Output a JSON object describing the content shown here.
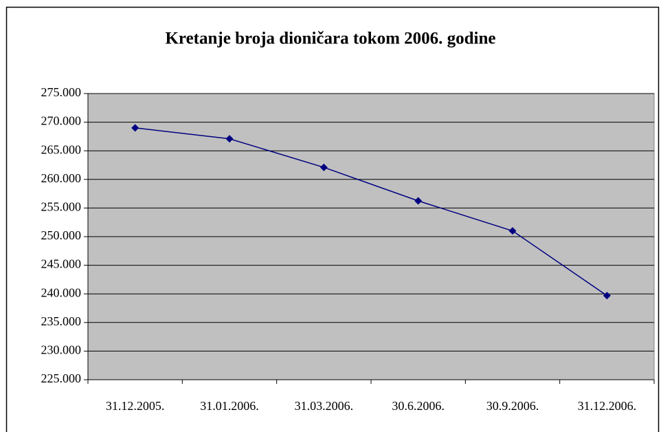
{
  "chart_data": {
    "type": "line",
    "title": "Kretanje broja dioničara tokom 2006. godine",
    "categories": [
      "31.12.2005.",
      "31.01.2006.",
      "31.03.2006.",
      "30.6.2006.",
      "30.9.2006.",
      "31.12.2006."
    ],
    "series": [
      {
        "color": "#000080",
        "values": [
          269000,
          267100,
          262100,
          256250,
          251000,
          239700
        ]
      }
    ],
    "ylim": [
      225000,
      275000
    ],
    "yticks": [
      {
        "value": 225000,
        "label": "225.000"
      },
      {
        "value": 230000,
        "label": "230.000"
      },
      {
        "value": 235000,
        "label": "235.000"
      },
      {
        "value": 240000,
        "label": "240.000"
      },
      {
        "value": 245000,
        "label": "245.000"
      },
      {
        "value": 250000,
        "label": "250.000"
      },
      {
        "value": 255000,
        "label": "255.000"
      },
      {
        "value": 260000,
        "label": "260.000"
      },
      {
        "value": 265000,
        "label": "265.000"
      },
      {
        "value": 270000,
        "label": "270.000"
      },
      {
        "value": 275000,
        "label": "275.000"
      }
    ],
    "grid": true,
    "plot_background": "#c0c0c0"
  }
}
